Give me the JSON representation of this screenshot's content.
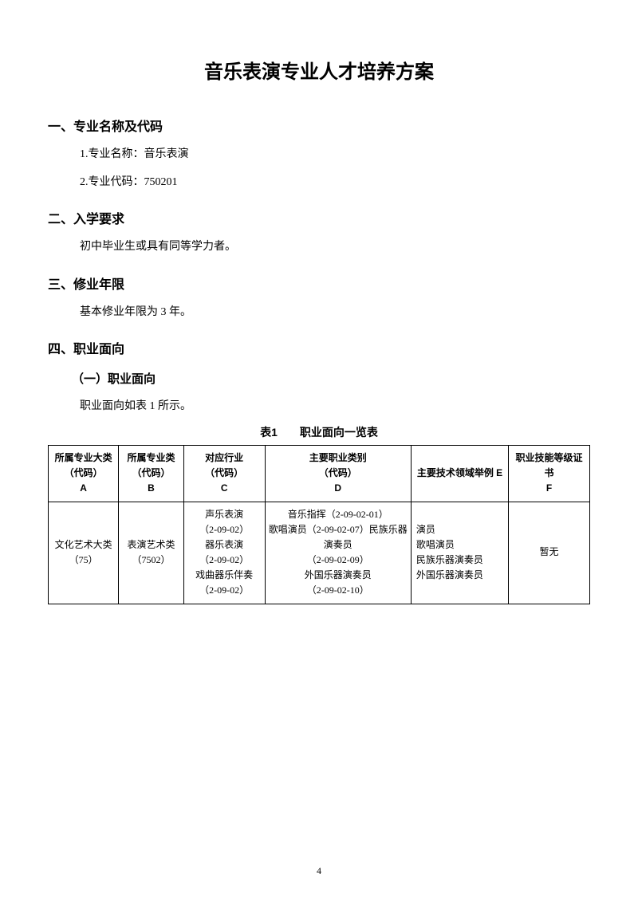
{
  "title": "音乐表演专业人才培养方案",
  "sections": {
    "s1": {
      "heading": "一、专业名称及代码",
      "item1": "1.专业名称：音乐表演",
      "item2": "2.专业代码：750201"
    },
    "s2": {
      "heading": "二、入学要求",
      "text": "初中毕业生或具有同等学力者。"
    },
    "s3": {
      "heading": "三、修业年限",
      "text": "基本修业年限为 3 年。"
    },
    "s4": {
      "heading": "四、职业面向",
      "sub_heading": "（一）职业面向",
      "text": "职业面向如表 1 所示。"
    }
  },
  "table": {
    "caption": "表1　　职业面向一览表",
    "headers": {
      "a": "所属专业大类\n（代码）\nA",
      "b": "所属专业类\n（代码）\nB",
      "c": "对应行业\n（代码）\nC",
      "d": "主要职业类别\n（代码）\nD",
      "e": "主要技术领域举例 E",
      "f": "职业技能等级证书\nF"
    },
    "row": {
      "a": "文化艺术大类（75）",
      "b": "表演艺术类\n（7502）",
      "c": "声乐表演\n（2-09-02）\n器乐表演\n（2-09-02）\n戏曲器乐伴奏\n（2-09-02）",
      "d": "音乐指挥（2-09-02-01）\n歌唱演员（2-09-02-07）民族乐器演奏员\n（2-09-02-09）\n外国乐器演奏员\n（2-09-02-10）",
      "e": "演员\n歌唱演员\n民族乐器演奏员\n外国乐器演奏员",
      "f": "暂无"
    }
  },
  "page_number": "4"
}
